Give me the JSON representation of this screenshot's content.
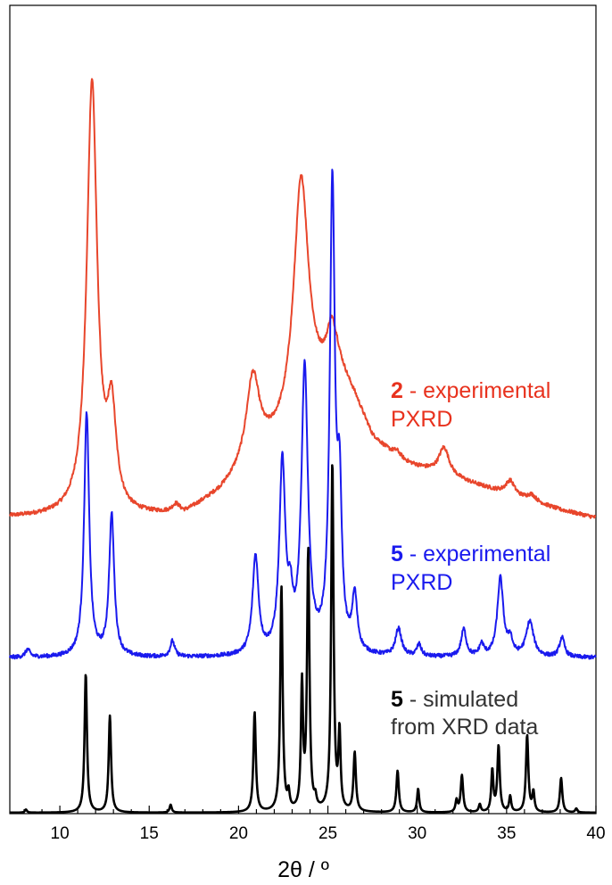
{
  "chart_data": {
    "type": "line",
    "title": "",
    "xlabel": "2θ / º",
    "ylabel": "",
    "xlim": [
      7.2,
      40
    ],
    "ylim": [
      0,
      1
    ],
    "grid": false,
    "y_ticks_shown": false,
    "x_ticks": [
      "10",
      "15",
      "20",
      "25",
      "30",
      "35",
      "40"
    ],
    "legend": "none",
    "annotations": [
      {
        "id": "2",
        "number": "2",
        "line1": " - experimental",
        "line2": "PXRD",
        "color": "#e8321e",
        "number_color": "#e8321e"
      },
      {
        "id": "5exp",
        "number": "5",
        "line1": " - experimental",
        "line2": "PXRD",
        "color": "#1a1aee",
        "number_color": "#1a1aee"
      },
      {
        "id": "5sim",
        "number": "5",
        "line1": " - simulated",
        "line2": "from XRD data",
        "color": "#333333",
        "number_color": "#000000"
      }
    ],
    "series": [
      {
        "id": "2-experimental",
        "color": "#e8462c",
        "baseline": 0.375,
        "drift": [
          [
            7.2,
            0.0
          ],
          [
            14.0,
            0.0
          ],
          [
            17.0,
            0.003
          ],
          [
            19.0,
            0.03
          ],
          [
            21.5,
            0.08
          ],
          [
            22.5,
            0.1
          ],
          [
            24.5,
            0.16
          ],
          [
            25.5,
            0.19
          ],
          [
            26.5,
            0.15
          ],
          [
            27.5,
            0.1
          ],
          [
            29.0,
            0.07
          ],
          [
            32.0,
            0.05
          ],
          [
            35.0,
            0.03
          ],
          [
            38.0,
            0.01
          ],
          [
            40.0,
            0.0
          ]
        ],
        "peaks": [
          {
            "x": 11.8,
            "h": 0.55,
            "w": 0.35
          },
          {
            "x": 12.9,
            "h": 0.12,
            "w": 0.3
          },
          {
            "x": 16.5,
            "h": 0.01,
            "w": 0.25
          },
          {
            "x": 20.8,
            "h": 0.11,
            "w": 0.45
          },
          {
            "x": 23.5,
            "h": 0.3,
            "w": 0.5
          },
          {
            "x": 25.2,
            "h": 0.05,
            "w": 0.3
          },
          {
            "x": 28.9,
            "h": 0.01,
            "w": 0.3
          },
          {
            "x": 31.5,
            "h": 0.035,
            "w": 0.35
          },
          {
            "x": 35.2,
            "h": 0.018,
            "w": 0.3
          },
          {
            "x": 36.4,
            "h": 0.008,
            "w": 0.3
          }
        ],
        "noise": 0.0025
      },
      {
        "id": "5-experimental",
        "color": "#1a1aee",
        "baseline": 0.197,
        "drift": [
          [
            7.2,
            0.0
          ],
          [
            40.0,
            0.0
          ]
        ],
        "peaks": [
          {
            "x": 8.2,
            "h": 0.01,
            "w": 0.15
          },
          {
            "x": 11.5,
            "h": 0.31,
            "w": 0.17
          },
          {
            "x": 12.9,
            "h": 0.18,
            "w": 0.17
          },
          {
            "x": 16.3,
            "h": 0.02,
            "w": 0.15
          },
          {
            "x": 20.95,
            "h": 0.125,
            "w": 0.2
          },
          {
            "x": 22.45,
            "h": 0.24,
            "w": 0.2
          },
          {
            "x": 22.9,
            "h": 0.05,
            "w": 0.15
          },
          {
            "x": 23.7,
            "h": 0.36,
            "w": 0.22
          },
          {
            "x": 25.25,
            "h": 0.59,
            "w": 0.17
          },
          {
            "x": 25.65,
            "h": 0.18,
            "w": 0.15
          },
          {
            "x": 26.5,
            "h": 0.07,
            "w": 0.17
          },
          {
            "x": 28.95,
            "h": 0.035,
            "w": 0.2
          },
          {
            "x": 30.1,
            "h": 0.015,
            "w": 0.15
          },
          {
            "x": 32.6,
            "h": 0.035,
            "w": 0.17
          },
          {
            "x": 33.6,
            "h": 0.015,
            "w": 0.15
          },
          {
            "x": 34.65,
            "h": 0.1,
            "w": 0.2
          },
          {
            "x": 35.2,
            "h": 0.02,
            "w": 0.15
          },
          {
            "x": 36.3,
            "h": 0.045,
            "w": 0.25
          },
          {
            "x": 38.1,
            "h": 0.025,
            "w": 0.17
          }
        ],
        "noise": 0.0025
      },
      {
        "id": "5-simulated",
        "color": "#000000",
        "baseline": 0.0,
        "drift": [
          [
            7.2,
            0.0
          ],
          [
            40.0,
            0.0
          ]
        ],
        "peaks": [
          {
            "x": 8.1,
            "h": 0.004,
            "w": 0.07
          },
          {
            "x": 11.45,
            "h": 0.177,
            "w": 0.08
          },
          {
            "x": 12.8,
            "h": 0.123,
            "w": 0.08
          },
          {
            "x": 16.2,
            "h": 0.01,
            "w": 0.07
          },
          {
            "x": 20.9,
            "h": 0.127,
            "w": 0.08
          },
          {
            "x": 22.4,
            "h": 0.286,
            "w": 0.08
          },
          {
            "x": 22.8,
            "h": 0.02,
            "w": 0.07
          },
          {
            "x": 23.55,
            "h": 0.158,
            "w": 0.07
          },
          {
            "x": 23.9,
            "h": 0.329,
            "w": 0.08
          },
          {
            "x": 24.3,
            "h": 0.012,
            "w": 0.07
          },
          {
            "x": 25.25,
            "h": 0.444,
            "w": 0.08
          },
          {
            "x": 25.65,
            "h": 0.097,
            "w": 0.07
          },
          {
            "x": 26.5,
            "h": 0.075,
            "w": 0.08
          },
          {
            "x": 28.9,
            "h": 0.053,
            "w": 0.08
          },
          {
            "x": 30.05,
            "h": 0.03,
            "w": 0.07
          },
          {
            "x": 32.2,
            "h": 0.015,
            "w": 0.07
          },
          {
            "x": 32.5,
            "h": 0.047,
            "w": 0.08
          },
          {
            "x": 33.5,
            "h": 0.01,
            "w": 0.07
          },
          {
            "x": 34.2,
            "h": 0.053,
            "w": 0.07
          },
          {
            "x": 34.55,
            "h": 0.084,
            "w": 0.08
          },
          {
            "x": 35.2,
            "h": 0.02,
            "w": 0.07
          },
          {
            "x": 36.15,
            "h": 0.098,
            "w": 0.08
          },
          {
            "x": 36.5,
            "h": 0.025,
            "w": 0.07
          },
          {
            "x": 38.05,
            "h": 0.044,
            "w": 0.08
          },
          {
            "x": 38.9,
            "h": 0.005,
            "w": 0.07
          }
        ],
        "noise": 0.0
      }
    ]
  }
}
